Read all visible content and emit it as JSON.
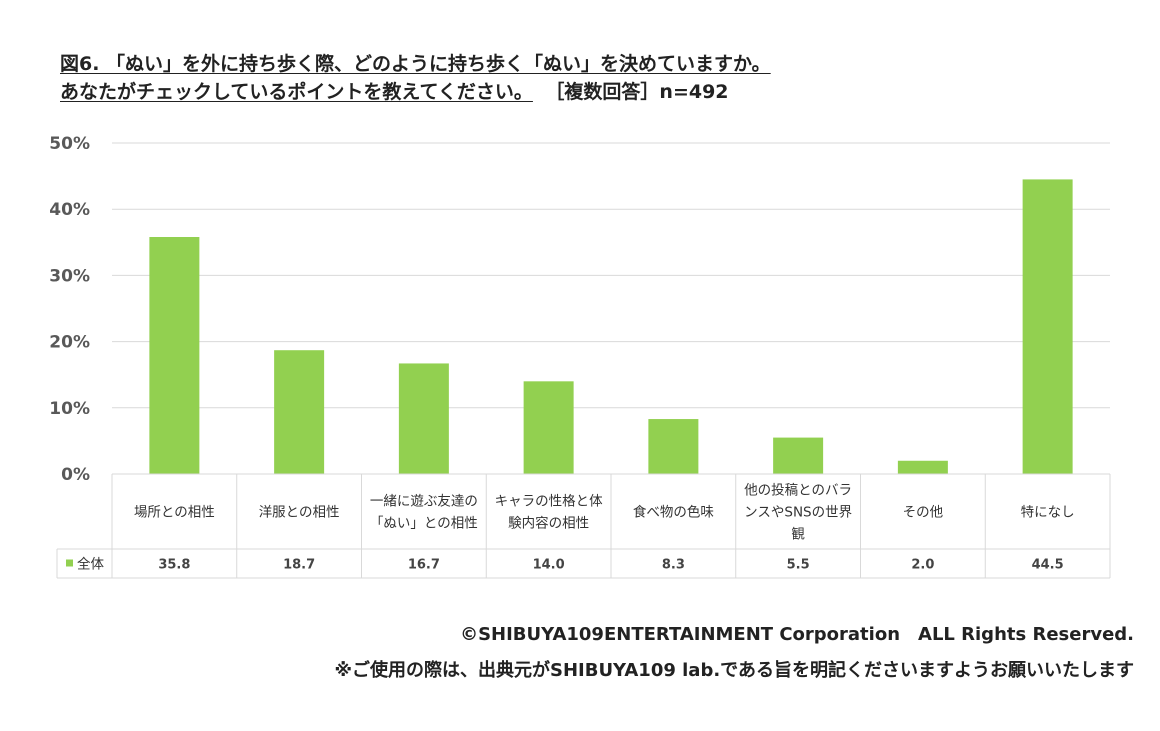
{
  "title_line1": "図6. 「ぬい」を外に持ち歩く際、どのように持ち歩く「ぬい」を決めていますか。",
  "title_line2": "あなたがチェックしているポイントを教えてください。",
  "title_note": "［複数回答］n=492",
  "chart_data": {
    "type": "bar",
    "categories": [
      [
        "場所との相性"
      ],
      [
        "洋服との相性"
      ],
      [
        "一緒に遊ぶ友達の",
        "「ぬい」との相性"
      ],
      [
        "キャラの性格と体",
        "験内容の相性"
      ],
      [
        "食べ物の色味"
      ],
      [
        "他の投稿とのバラ",
        "ンスやSNSの世界",
        "観"
      ],
      [
        "その他"
      ],
      [
        "特になし"
      ]
    ],
    "series": [
      {
        "name": "全体",
        "values": [
          35.8,
          18.7,
          16.7,
          14.0,
          8.3,
          5.5,
          2.0,
          44.5
        ],
        "labels": [
          "35.8",
          "18.7",
          "16.7",
          "14.0",
          "8.3",
          "5.5",
          "2.0",
          "44.5"
        ]
      }
    ],
    "y_ticks": [
      "0%",
      "10%",
      "20%",
      "30%",
      "40%",
      "50%"
    ],
    "ylim": [
      0,
      50
    ],
    "grid": true,
    "bar_color": "#92d050",
    "grid_color": "#d9d9d9",
    "table_border_color": "#d9d9d9"
  },
  "footer_line1": "©SHIBUYA109ENTERTAINMENT Corporation　ALL Rights Reserved.",
  "footer_line2": "※ご使用の際は、出典元がSHIBUYA109 lab.である旨を明記くださいますようお願いいたします"
}
